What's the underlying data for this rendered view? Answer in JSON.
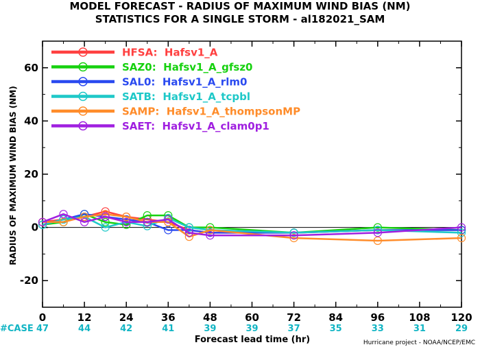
{
  "chart_data": {
    "type": "line",
    "title": "MODEL FORECAST - RADIUS OF MAXIMUM WIND BIAS (NM)",
    "subtitle": "STATISTICS FOR A SINGLE STORM - al182021_SAM",
    "xlabel": "Forecast lead time (hr)",
    "ylabel": "RADIUS OF MAXIMUM WIND BIAS (NM)",
    "credit": "Hurricane project - NOAA/NCEP/EMC",
    "xlim": [
      0,
      120
    ],
    "ylim": [
      -30,
      70
    ],
    "xticks": [
      "0",
      "12",
      "24",
      "36",
      "48",
      "60",
      "72",
      "84",
      "96",
      "108",
      "120"
    ],
    "yticks": [
      "60",
      "40",
      "20",
      "0",
      "-20"
    ],
    "grid": false,
    "legend_position": "top-left",
    "case_label": "#CASE",
    "cases": {
      "x": [
        0,
        12,
        24,
        36,
        48,
        60,
        72,
        84,
        96,
        108,
        120
      ],
      "labels": [
        "47",
        "44",
        "42",
        "41",
        "39",
        "39",
        "37",
        "35",
        "33",
        "31",
        "29"
      ]
    },
    "series": [
      {
        "name": "HFSA:  Hafsv1_A",
        "color": "#ff4040",
        "x": [
          0,
          6,
          12,
          18,
          24,
          30,
          36,
          42,
          48,
          72,
          96,
          120
        ],
        "y": [
          2,
          3,
          4,
          6,
          4,
          3,
          2,
          -1,
          -2,
          -2,
          -1,
          -1
        ]
      },
      {
        "name": "SAZ0:  Hafsv1_A_gfsz0",
        "color": "#16d10f",
        "x": [
          0,
          6,
          12,
          18,
          24,
          30,
          36,
          42,
          48,
          72,
          96,
          120
        ],
        "y": [
          1,
          2,
          5,
          2,
          1,
          4.5,
          4.5,
          0,
          0,
          -2,
          0,
          -1
        ]
      },
      {
        "name": "SAL0:  Hafsv1_A_rlm0",
        "color": "#2a4af0",
        "x": [
          0,
          6,
          12,
          18,
          24,
          30,
          36,
          42,
          48,
          72,
          96,
          120
        ],
        "y": [
          1,
          3,
          5,
          4,
          3,
          2,
          -1,
          -1,
          -2,
          -2,
          -1,
          -1
        ]
      },
      {
        "name": "SATB:  Hafsv1_A_tcpbl",
        "color": "#1ec8c8",
        "x": [
          0,
          6,
          12,
          18,
          24,
          30,
          36,
          42,
          48,
          72,
          96,
          120
        ],
        "y": [
          1,
          3,
          4,
          0,
          2,
          0.5,
          3.5,
          0,
          -1,
          -2,
          -1,
          -2
        ]
      },
      {
        "name": "SAMP:  Hafsv1_A_thompsonMP",
        "color": "#ff8c2a",
        "x": [
          0,
          6,
          12,
          18,
          24,
          30,
          36,
          42,
          48,
          72,
          96,
          120
        ],
        "y": [
          2,
          2,
          4,
          5,
          4,
          2,
          2,
          -3.5,
          -1,
          -4,
          -5,
          -4
        ]
      },
      {
        "name": "SAET:  Hafsv1_A_clam0p1",
        "color": "#a020e0",
        "x": [
          0,
          6,
          12,
          18,
          24,
          30,
          36,
          42,
          48,
          72,
          96,
          120
        ],
        "y": [
          2,
          5,
          2,
          4,
          2,
          2,
          3,
          -2,
          -3,
          -3,
          -2,
          0
        ]
      }
    ]
  }
}
